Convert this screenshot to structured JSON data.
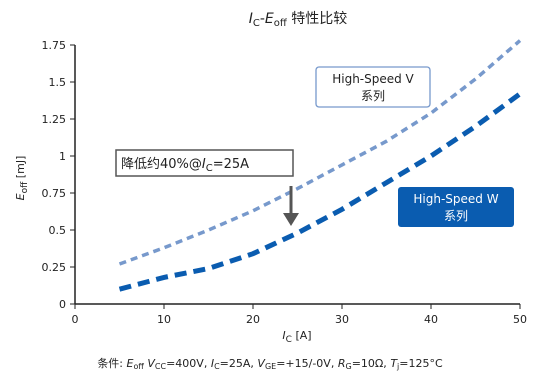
{
  "chart_data": {
    "type": "line",
    "title": {
      "i": "I",
      "i_sub": "C",
      "dash": "-",
      "e": "E",
      "e_sub": "off",
      "rest": " 特性比较"
    },
    "xlabel": {
      "var": "I",
      "sub": "C",
      "unit": " [A]"
    },
    "ylabel": {
      "var": "E",
      "sub": "off",
      "unit": " [mJ]"
    },
    "xlim": [
      0,
      50
    ],
    "ylim": [
      0,
      1.75
    ],
    "x_ticks": [
      "0",
      "10",
      "20",
      "30",
      "40",
      "50"
    ],
    "y_ticks": [
      "0",
      "0.25",
      "0.5",
      "0.75",
      "1",
      "1.25",
      "1.5",
      "1.75"
    ],
    "grid": false,
    "series": [
      {
        "name": "High-Speed V\n系列",
        "color": "#7799cc",
        "style": "dashed",
        "x": [
          5,
          10,
          15,
          20,
          25,
          30,
          35,
          40,
          45,
          50
        ],
        "y": [
          0.27,
          0.38,
          0.5,
          0.63,
          0.78,
          0.94,
          1.1,
          1.29,
          1.52,
          1.78
        ]
      },
      {
        "name": "High-Speed W\n系列",
        "color": "#0a5cb0",
        "style": "dashed",
        "x": [
          5,
          10,
          15,
          20,
          25,
          30,
          35,
          40,
          45,
          50
        ],
        "y": [
          0.1,
          0.18,
          0.24,
          0.34,
          0.48,
          0.64,
          0.82,
          1.0,
          1.2,
          1.42
        ]
      }
    ],
    "annotations": {
      "reduction": {
        "pre": "降低约40%@",
        "var": "I",
        "sub": "C",
        "post": "=25A"
      },
      "legend_v": [
        "High-Speed V",
        "系列"
      ],
      "legend_w": [
        "High-Speed W",
        "系列"
      ]
    },
    "conditions": {
      "lead": "条件:",
      "parts": [
        {
          "var": "E",
          "sub": "off",
          "text": " "
        },
        {
          "var": "V",
          "sub": "CC",
          "text": "=400V, "
        },
        {
          "var": "I",
          "sub": "C",
          "text": "=25A, "
        },
        {
          "var": "V",
          "sub": "GE",
          "text": "=+15/-0V, "
        },
        {
          "var": "R",
          "sub": "G",
          "text": "=10Ω, "
        },
        {
          "var": "T",
          "sub": "j",
          "text": "=125°C"
        }
      ]
    },
    "colors": {
      "series_v": "#7799cc",
      "series_w": "#0a5cb0",
      "arrow": "#555555",
      "axis": "#222222"
    }
  }
}
